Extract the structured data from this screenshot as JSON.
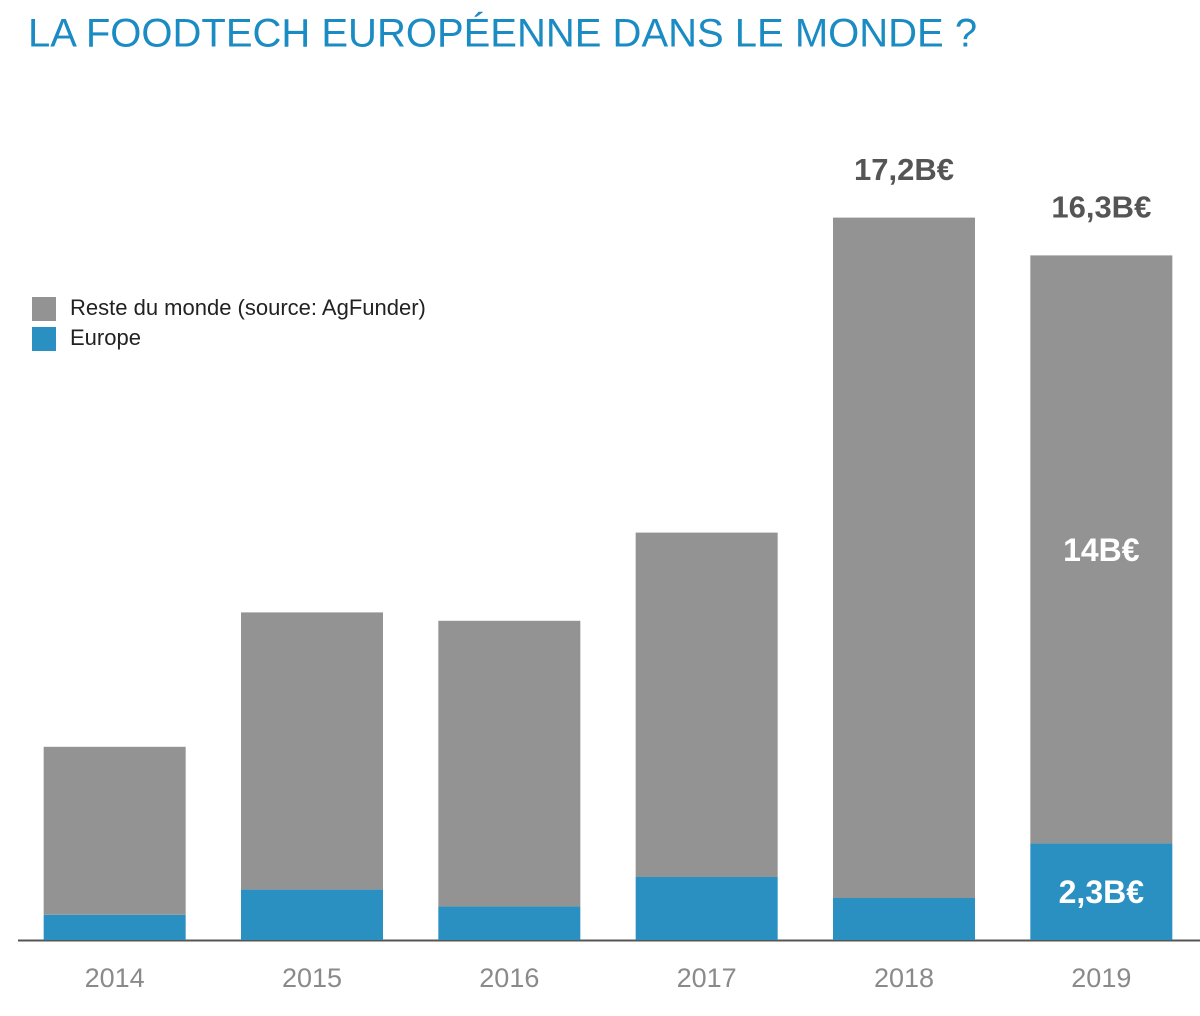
{
  "chart_data": {
    "type": "stacked-bar",
    "title": "LA FOODTECH EUROPÉENNE DANS LE MONDE ?",
    "categories": [
      "2014",
      "2015",
      "2016",
      "2017",
      "2018",
      "2019"
    ],
    "series": [
      {
        "name": "Europe",
        "color": "#2a8fc1",
        "values": [
          0.6,
          1.2,
          0.8,
          1.5,
          1.0,
          2.3
        ],
        "value_labels": [
          null,
          null,
          null,
          null,
          null,
          "2,3B€"
        ]
      },
      {
        "name": "Reste du monde (source: AgFunder)",
        "color": "#939393",
        "values": [
          4.0,
          6.6,
          6.8,
          8.2,
          16.2,
          14.0
        ],
        "value_labels": [
          null,
          null,
          null,
          null,
          null,
          "14B€"
        ]
      }
    ],
    "total_labels": [
      {
        "category": "2018",
        "value": 17.2,
        "label": "17,2B€"
      },
      {
        "category": "2019",
        "value": 16.3,
        "label": "16,3B€"
      }
    ],
    "ylim": [
      0,
      18
    ],
    "legend": "upper-left"
  }
}
